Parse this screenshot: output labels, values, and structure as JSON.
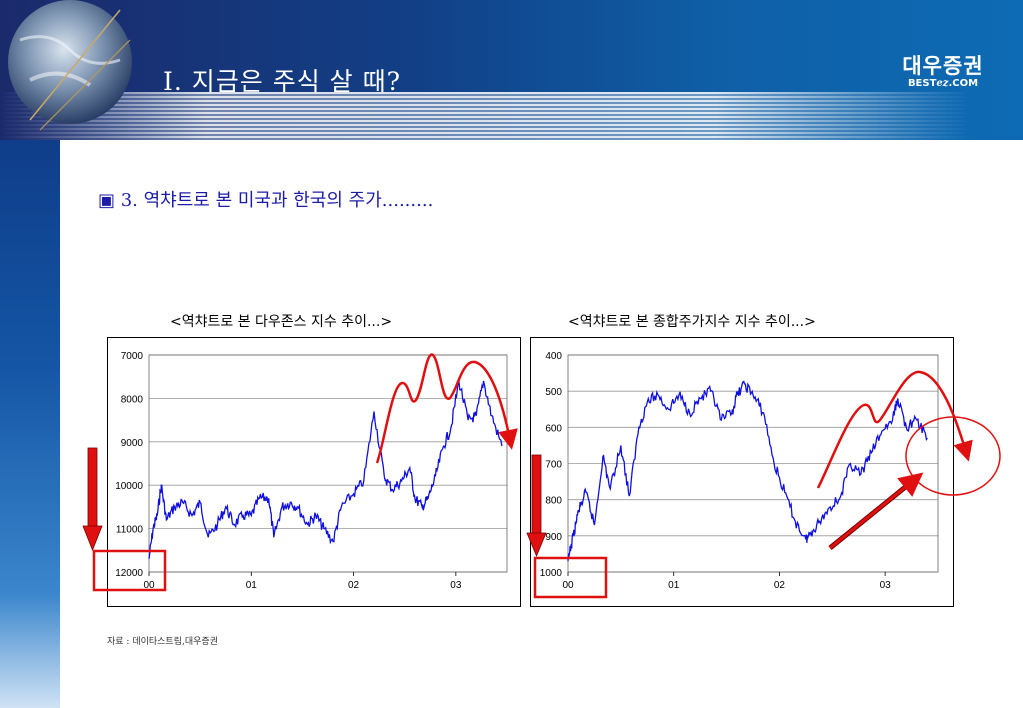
{
  "header": {
    "title": "I. 지금은 주식 살 때?",
    "logo_main": "대우증권",
    "logo_sub_left": "BEST",
    "logo_sub_mid": "ez",
    "logo_sub_right": ".COM"
  },
  "section": {
    "heading": "▣ 3. 역챠트로 본 미국과 한국의 주가........."
  },
  "source_note": "자료 : 데이타스트림,대우증권",
  "colors": {
    "series": "#1010e0",
    "annotation": "#e01010",
    "header_dark": "#1b2a6b",
    "heading_text": "#1c1ca8"
  },
  "chart_data": [
    {
      "type": "line",
      "title": "<역챠트로 본 다우존스 지수 추이...>",
      "y_inverted": true,
      "ylim": [
        7000,
        12000
      ],
      "yticks": [
        "7000",
        "8000",
        "9000",
        "10000",
        "11000",
        "12000"
      ],
      "xticks": [
        "00",
        "01",
        "02",
        "03"
      ],
      "grid": "horizontal",
      "series": [
        {
          "x": [
            2000.0,
            2000.04,
            2000.08,
            2000.12,
            2000.17,
            2000.25,
            2000.33,
            2000.42,
            2000.5,
            2000.58,
            2000.67,
            2000.75,
            2000.83,
            2000.92,
            2001.0,
            2001.08,
            2001.17,
            2001.22,
            2001.3,
            2001.38,
            2001.45,
            2001.55,
            2001.63,
            2001.71,
            2001.8,
            2001.88,
            2002.0,
            2002.1,
            2002.2,
            2002.3,
            2002.38,
            2002.47,
            2002.55,
            2002.6,
            2002.67,
            2002.73,
            2002.8,
            2002.88,
            2002.95,
            2003.03,
            2003.12,
            2003.2,
            2003.27,
            2003.35,
            2003.45
          ],
          "values": [
            11700,
            11000,
            10700,
            10000,
            10800,
            10500,
            10400,
            10700,
            10400,
            11200,
            10900,
            10500,
            10900,
            10700,
            10700,
            10300,
            10300,
            11200,
            10500,
            10400,
            10500,
            10900,
            10700,
            11000,
            11300,
            10500,
            10200,
            9900,
            8300,
            9800,
            10100,
            9900,
            9600,
            10300,
            10500,
            10300,
            9800,
            9100,
            8700,
            7600,
            8500,
            8400,
            7600,
            8400,
            9100
          ]
        }
      ],
      "annotations": [
        "down-arrow",
        "highlight-box",
        "curve-arrow"
      ]
    },
    {
      "type": "line",
      "title": "<역챠트로 본 종합주가지수 지수 추이...>",
      "y_inverted": true,
      "ylim": [
        400,
        1000
      ],
      "yticks": [
        "400",
        "500",
        "600",
        "700",
        "800",
        "900",
        "1000"
      ],
      "xticks": [
        "00",
        "01",
        "02",
        "03"
      ],
      "grid": "horizontal",
      "series": [
        {
          "x": [
            2000.0,
            2000.05,
            2000.1,
            2000.17,
            2000.25,
            2000.33,
            2000.4,
            2000.5,
            2000.58,
            2000.67,
            2000.75,
            2000.85,
            2000.95,
            2001.05,
            2001.15,
            2001.25,
            2001.35,
            2001.45,
            2001.55,
            2001.6,
            2001.67,
            2001.75,
            2001.85,
            2001.95,
            2002.05,
            2002.15,
            2002.25,
            2002.3,
            2002.38,
            2002.48,
            2002.58,
            2002.67,
            2002.77,
            2002.87,
            2002.97,
            2003.07,
            2003.12,
            2003.2,
            2003.3,
            2003.4
          ],
          "values": [
            970,
            900,
            830,
            780,
            870,
            680,
            770,
            650,
            790,
            600,
            530,
            510,
            550,
            510,
            560,
            520,
            500,
            580,
            560,
            510,
            480,
            510,
            560,
            700,
            780,
            860,
            910,
            890,
            860,
            820,
            790,
            700,
            730,
            670,
            610,
            580,
            520,
            600,
            580,
            630
          ]
        }
      ],
      "annotations": [
        "down-arrow",
        "highlight-box",
        "curve-arrow",
        "up-arrow",
        "circle"
      ]
    }
  ]
}
